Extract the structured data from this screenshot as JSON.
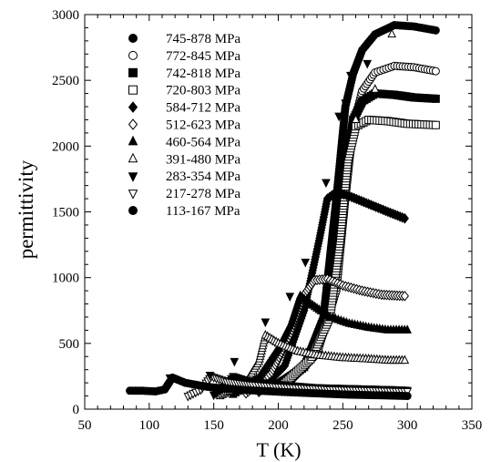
{
  "chart_data": {
    "type": "scatter",
    "xlabel": "T (K)",
    "ylabel": "permittivity",
    "xlim": [
      50,
      350
    ],
    "ylim": [
      0,
      3000
    ],
    "xticks": [
      50,
      100,
      150,
      200,
      250,
      300,
      350
    ],
    "yticks": [
      0,
      500,
      1000,
      1500,
      2000,
      2500,
      3000
    ],
    "grid": false,
    "legend_position": "top-left",
    "series": [
      {
        "name": "745-878 MPa",
        "marker": "circle-filled",
        "points": [
          [
            200,
            200
          ],
          [
            220,
            330
          ],
          [
            235,
            700
          ],
          [
            245,
            1600
          ],
          [
            252,
            2300
          ],
          [
            258,
            2550
          ],
          [
            265,
            2730
          ],
          [
            275,
            2850
          ],
          [
            290,
            2920
          ],
          [
            305,
            2910
          ],
          [
            322,
            2880
          ]
        ]
      },
      {
        "name": "772-845 MPa",
        "marker": "circle-open",
        "points": [
          [
            210,
            220
          ],
          [
            230,
            420
          ],
          [
            245,
            900
          ],
          [
            252,
            1600
          ],
          [
            258,
            2150
          ],
          [
            265,
            2420
          ],
          [
            275,
            2560
          ],
          [
            290,
            2610
          ],
          [
            305,
            2600
          ],
          [
            322,
            2570
          ]
        ]
      },
      {
        "name": "742-818 MPa",
        "marker": "square-filled",
        "points": [
          [
            200,
            180
          ],
          [
            220,
            320
          ],
          [
            235,
            600
          ],
          [
            245,
            1100
          ],
          [
            252,
            1800
          ],
          [
            258,
            2200
          ],
          [
            265,
            2340
          ],
          [
            275,
            2400
          ],
          [
            290,
            2390
          ],
          [
            305,
            2370
          ],
          [
            322,
            2360
          ]
        ]
      },
      {
        "name": "720-803 MPa",
        "marker": "square-open",
        "points": [
          [
            205,
            200
          ],
          [
            225,
            380
          ],
          [
            240,
            700
          ],
          [
            248,
            1300
          ],
          [
            254,
            1900
          ],
          [
            260,
            2150
          ],
          [
            270,
            2200
          ],
          [
            285,
            2190
          ],
          [
            300,
            2170
          ],
          [
            322,
            2160
          ]
        ]
      },
      {
        "name": "584-712 MPa",
        "marker": "diamond-filled",
        "points": [
          [
            185,
            130
          ],
          [
            205,
            330
          ],
          [
            220,
            750
          ],
          [
            232,
            1300
          ],
          [
            238,
            1600
          ],
          [
            245,
            1650
          ],
          [
            255,
            1620
          ],
          [
            270,
            1560
          ],
          [
            285,
            1500
          ],
          [
            298,
            1450
          ]
        ]
      },
      {
        "name": "512-623 MPa",
        "marker": "diamond-open",
        "points": [
          [
            175,
            120
          ],
          [
            195,
            280
          ],
          [
            210,
            580
          ],
          [
            220,
            870
          ],
          [
            228,
            980
          ],
          [
            238,
            990
          ],
          [
            250,
            940
          ],
          [
            265,
            900
          ],
          [
            280,
            870
          ],
          [
            298,
            860
          ]
        ]
      },
      {
        "name": "460-564 MPa",
        "marker": "triangle-up-filled",
        "points": [
          [
            165,
            110
          ],
          [
            185,
            240
          ],
          [
            200,
            460
          ],
          [
            210,
            650
          ],
          [
            217,
            860
          ],
          [
            225,
            800
          ],
          [
            240,
            700
          ],
          [
            255,
            650
          ],
          [
            270,
            620
          ],
          [
            285,
            600
          ],
          [
            300,
            600
          ]
        ]
      },
      {
        "name": "391-480 MPa",
        "marker": "triangle-up-open",
        "points": [
          [
            155,
            100
          ],
          [
            175,
            200
          ],
          [
            185,
            360
          ],
          [
            190,
            560
          ],
          [
            200,
            500
          ],
          [
            215,
            440
          ],
          [
            230,
            410
          ],
          [
            250,
            390
          ],
          [
            270,
            380
          ],
          [
            285,
            370
          ],
          [
            298,
            370
          ]
        ]
      },
      {
        "name": "283-354 MPa",
        "marker": "triangle-down-filled",
        "points": [
          [
            150,
            110
          ],
          [
            158,
            170
          ],
          [
            165,
            250
          ],
          [
            175,
            220
          ],
          [
            190,
            200
          ],
          [
            210,
            180
          ],
          [
            230,
            165
          ],
          [
            250,
            160
          ],
          [
            270,
            155
          ],
          [
            290,
            150
          ],
          [
            300,
            145
          ]
        ]
      },
      {
        "name": "217-278 MPa",
        "marker": "triangle-down-open",
        "points": [
          [
            130,
            100
          ],
          [
            140,
            150
          ],
          [
            148,
            250
          ],
          [
            160,
            210
          ],
          [
            180,
            185
          ],
          [
            200,
            170
          ],
          [
            220,
            160
          ],
          [
            240,
            150
          ],
          [
            260,
            145
          ],
          [
            280,
            140
          ],
          [
            300,
            135
          ]
        ]
      },
      {
        "name": "113-167 MPa",
        "marker": "circle-filled",
        "points": [
          [
            85,
            140
          ],
          [
            95,
            140
          ],
          [
            105,
            135
          ],
          [
            112,
            150
          ],
          [
            118,
            240
          ],
          [
            128,
            200
          ],
          [
            145,
            170
          ],
          [
            165,
            150
          ],
          [
            185,
            140
          ],
          [
            205,
            130
          ],
          [
            230,
            120
          ],
          [
            255,
            110
          ],
          [
            280,
            105
          ],
          [
            300,
            100
          ]
        ]
      }
    ],
    "annotations": [
      {
        "marker": "triangle-down-filled",
        "x": 116,
        "y": 240
      },
      {
        "marker": "triangle-down-filled",
        "x": 147,
        "y": 260
      },
      {
        "marker": "triangle-down-filled",
        "x": 166,
        "y": 365
      },
      {
        "marker": "triangle-down-filled",
        "x": 190,
        "y": 665
      },
      {
        "marker": "triangle-down-filled",
        "x": 209,
        "y": 860
      },
      {
        "marker": "triangle-down-filled",
        "x": 221,
        "y": 1120
      },
      {
        "marker": "triangle-down-filled",
        "x": 237,
        "y": 1725
      },
      {
        "marker": "triangle-down-filled",
        "x": 247,
        "y": 2230
      },
      {
        "marker": "triangle-down-filled",
        "x": 252,
        "y": 2330
      },
      {
        "marker": "triangle-down-filled",
        "x": 256,
        "y": 2540
      },
      {
        "marker": "triangle-down-filled",
        "x": 269,
        "y": 2630
      },
      {
        "marker": "triangle-up-open",
        "x": 260,
        "y": 2200
      },
      {
        "marker": "triangle-up-open",
        "x": 275,
        "y": 2430
      },
      {
        "marker": "triangle-up-open",
        "x": 288,
        "y": 2850
      }
    ]
  }
}
